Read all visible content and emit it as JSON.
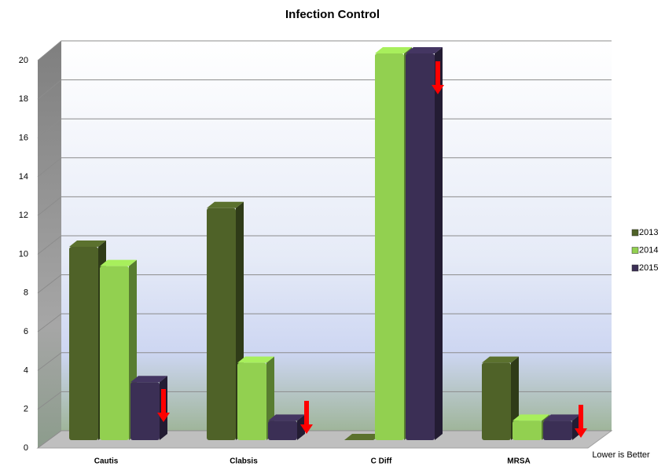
{
  "chart_data": {
    "type": "bar3d",
    "title": "Infection Control",
    "categories": [
      "Cautis",
      "Clabsis",
      "C Diff",
      "MRSA"
    ],
    "series": [
      {
        "name": "2013",
        "color": "#4f6228",
        "values": [
          10,
          12,
          0,
          4
        ]
      },
      {
        "name": "2014",
        "color": "#92d050",
        "values": [
          9,
          4,
          20,
          1
        ]
      },
      {
        "name": "2015",
        "color": "#3b2f55",
        "values": [
          3,
          1,
          20,
          1
        ]
      }
    ],
    "ylim": [
      0,
      20
    ],
    "yticks": [
      0,
      2,
      4,
      6,
      8,
      10,
      12,
      14,
      16,
      18,
      20
    ],
    "grid": true,
    "legend": "right",
    "annotation": "Lower is Better"
  }
}
